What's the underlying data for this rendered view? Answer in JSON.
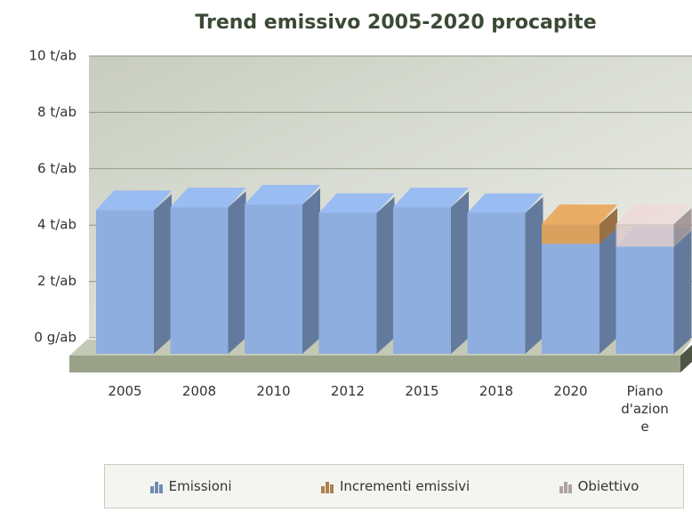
{
  "chart_data": {
    "type": "bar",
    "stacked": true,
    "three_d": true,
    "title": "Trend emissivo 2005-2020 procapite",
    "categories": [
      "2005",
      "2008",
      "2010",
      "2012",
      "2015",
      "2018",
      "2020",
      "Piano d'azione"
    ],
    "series": [
      {
        "name": "Emissioni",
        "color": "#8eaee0",
        "values": [
          5.1,
          5.2,
          5.3,
          5.0,
          5.2,
          5.0,
          3.9,
          3.8
        ]
      },
      {
        "name": "Incrementi emissivi",
        "color": "#d9a05e",
        "values": [
          null,
          null,
          null,
          null,
          null,
          null,
          0.7,
          null
        ]
      },
      {
        "name": "Obiettivo",
        "color": "#dccaca",
        "values": [
          null,
          null,
          null,
          null,
          null,
          null,
          null,
          0.8
        ]
      }
    ],
    "ylim": [
      0,
      10
    ],
    "yticks": [
      {
        "value": 0,
        "label": "0 g/ab"
      },
      {
        "value": 2,
        "label": "2 t/ab"
      },
      {
        "value": 4,
        "label": "4 t/ab"
      },
      {
        "value": 6,
        "label": "6 t/ab"
      },
      {
        "value": 8,
        "label": "8 t/ab"
      },
      {
        "value": 10,
        "label": "10 t/ab"
      }
    ],
    "grid": true,
    "legend": "bottom"
  }
}
